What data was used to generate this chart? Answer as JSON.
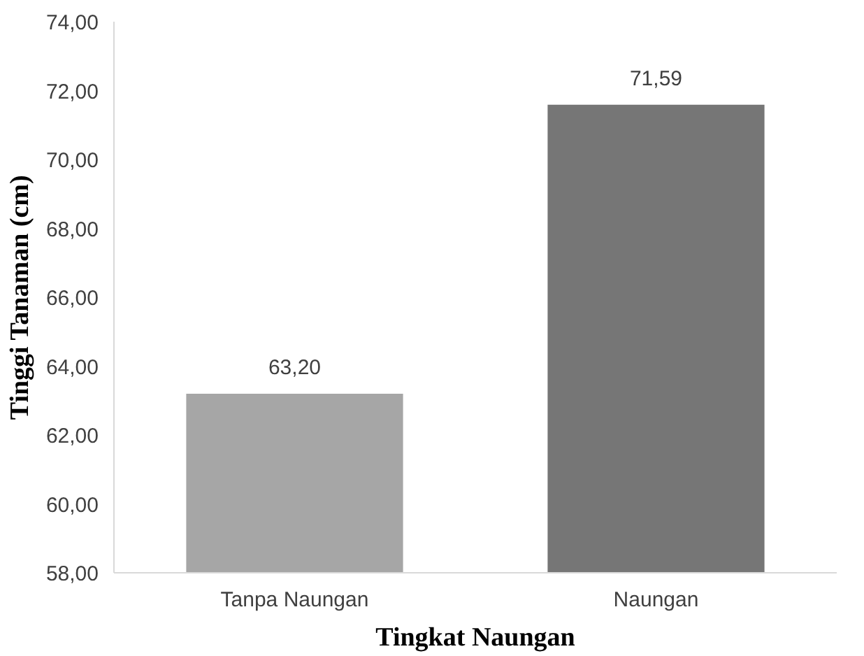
{
  "chart_data": {
    "type": "bar",
    "xlabel": "Tingkat Naungan",
    "ylabel": "Tinggi Tanaman (cm)",
    "categories": [
      "Tanpa Naungan",
      "Naungan"
    ],
    "values": [
      63.2,
      71.59
    ],
    "colors": [
      "#a6a6a6",
      "#767676"
    ],
    "value_labels": [
      "63,20",
      "71,59"
    ],
    "ylim": [
      58,
      74
    ],
    "yticks": [
      {
        "value": 58,
        "label": "58,00"
      },
      {
        "value": 60,
        "label": "60,00"
      },
      {
        "value": 62,
        "label": "62,00"
      },
      {
        "value": 64,
        "label": "64,00"
      },
      {
        "value": 66,
        "label": "66,00"
      },
      {
        "value": 68,
        "label": "68,00"
      },
      {
        "value": 70,
        "label": "70,00"
      },
      {
        "value": 72,
        "label": "72,00"
      },
      {
        "value": 74,
        "label": "74,00"
      }
    ],
    "grid": false
  }
}
